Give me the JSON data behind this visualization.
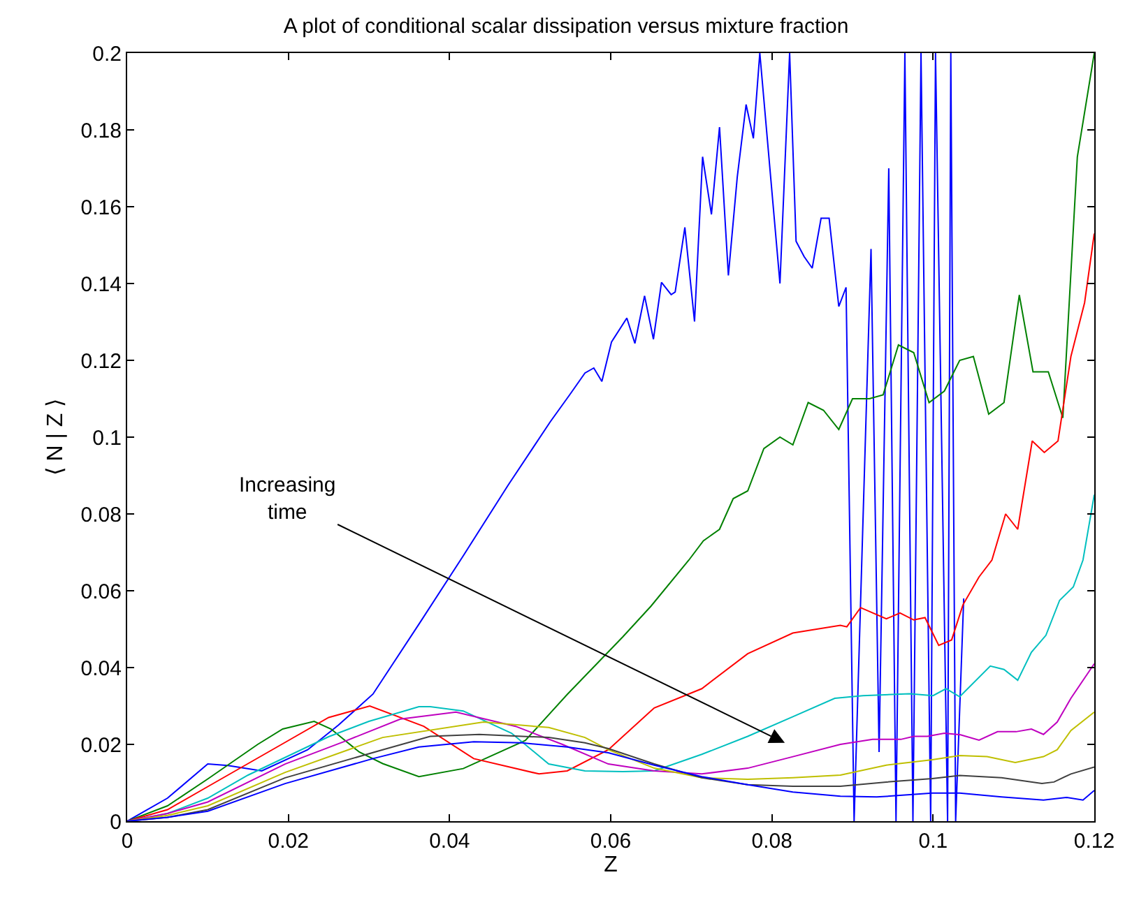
{
  "chart_data": {
    "type": "line",
    "title": "A plot of conditional scalar dissipation versus mixture fraction",
    "xlabel": "Z",
    "ylabel": "⟨ N | Z ⟩",
    "xlim": [
      0,
      0.12
    ],
    "xticks": [
      0,
      0.02,
      0.04,
      0.06,
      0.08,
      0.1,
      0.12
    ],
    "ylim": [
      0,
      0.2
    ],
    "yticks": [
      0,
      0.02,
      0.04,
      0.06,
      0.08,
      0.1,
      0.12,
      0.14,
      0.16,
      0.18,
      0.2
    ],
    "annotations": [
      "Increasing\ntime"
    ],
    "series": [
      {
        "color": "#0000ff",
        "x": [
          0,
          0.005,
          0.01,
          0.0125,
          0.0167,
          0.0224,
          0.0262,
          0.0305,
          0.0362,
          0.0417,
          0.0473,
          0.0525,
          0.0549,
          0.0568,
          0.0579,
          0.0589,
          0.0601,
          0.062,
          0.063,
          0.0642,
          0.0653,
          0.0663,
          0.0675,
          0.068,
          0.0692,
          0.0704,
          0.0714,
          0.0725,
          0.0735,
          0.0746,
          0.0757,
          0.0768,
          0.0777,
          0.0785,
          0.081,
          0.0822,
          0.083,
          0.084,
          0.085,
          0.0861,
          0.0871,
          0.0883,
          0.0892,
          0.0902,
          0.0923,
          0.0933,
          0.0945,
          0.0954,
          0.0965,
          0.0975,
          0.0985,
          0.0997,
          0.1003,
          0.1018,
          0.1022,
          0.1028,
          0.1038
        ],
        "values": [
          0,
          0.006,
          0.0149,
          0.0145,
          0.0131,
          0.0186,
          0.025,
          0.0331,
          0.0513,
          0.0691,
          0.0876,
          0.104,
          0.111,
          0.1167,
          0.118,
          0.1145,
          0.1248,
          0.131,
          0.1244,
          0.1368,
          0.1255,
          0.1403,
          0.1371,
          0.1378,
          0.1546,
          0.1301,
          0.173,
          0.158,
          0.1807,
          0.1421,
          0.1677,
          0.1866,
          0.1778,
          0.2,
          0.14,
          0.2,
          0.151,
          0.147,
          0.144,
          0.157,
          0.157,
          0.134,
          0.139,
          0,
          0.149,
          0.018,
          0.17,
          0,
          0.2,
          0,
          0.2,
          0,
          0.2,
          0,
          0.2,
          0,
          0.058
        ]
      },
      {
        "color": "#008000",
        "x": [
          0,
          0.005,
          0.01,
          0.0162,
          0.0193,
          0.0232,
          0.0253,
          0.0288,
          0.0317,
          0.0362,
          0.0417,
          0.0494,
          0.0546,
          0.0615,
          0.065,
          0.0697,
          0.0715,
          0.0735,
          0.0752,
          0.077,
          0.079,
          0.081,
          0.0826,
          0.0845,
          0.0864,
          0.0883,
          0.09,
          0.0921,
          0.0938,
          0.0957,
          0.0976,
          0.0995,
          0.1014,
          0.1033,
          0.105,
          0.1069,
          0.1088,
          0.1107,
          0.1124,
          0.1143,
          0.1161,
          0.1179,
          0.12
        ],
        "values": [
          0,
          0.004,
          0.011,
          0.02,
          0.024,
          0.026,
          0.024,
          0.018,
          0.015,
          0.0116,
          0.0137,
          0.021,
          0.033,
          0.048,
          0.056,
          0.068,
          0.073,
          0.076,
          0.084,
          0.086,
          0.097,
          0.1,
          0.098,
          0.109,
          0.107,
          0.102,
          0.11,
          0.11,
          0.111,
          0.124,
          0.122,
          0.109,
          0.112,
          0.12,
          0.121,
          0.106,
          0.109,
          0.137,
          0.117,
          0.117,
          0.105,
          0.173,
          0.2
        ]
      },
      {
        "color": "#ff0000",
        "x": [
          0,
          0.005,
          0.01,
          0.015,
          0.02,
          0.025,
          0.0301,
          0.0368,
          0.043,
          0.0511,
          0.0546,
          0.0597,
          0.0654,
          0.0713,
          0.077,
          0.0826,
          0.0885,
          0.0893,
          0.091,
          0.0942,
          0.0959,
          0.0976,
          0.099,
          0.1007,
          0.1023,
          0.1037,
          0.1057,
          0.1073,
          0.109,
          0.1105,
          0.1123,
          0.1138,
          0.1155,
          0.1171,
          0.1188,
          0.12
        ],
        "values": [
          0,
          0.003,
          0.009,
          0.015,
          0.021,
          0.027,
          0.03,
          0.0247,
          0.0163,
          0.0123,
          0.0131,
          0.0186,
          0.0295,
          0.0345,
          0.0436,
          0.049,
          0.051,
          0.0506,
          0.0556,
          0.0527,
          0.0542,
          0.0524,
          0.053,
          0.0458,
          0.0472,
          0.0563,
          0.0636,
          0.068,
          0.08,
          0.076,
          0.099,
          0.096,
          0.099,
          0.121,
          0.135,
          0.153
        ]
      },
      {
        "color": "#00bfbf",
        "x": [
          0,
          0.005,
          0.01,
          0.015,
          0.02,
          0.025,
          0.03,
          0.0362,
          0.0376,
          0.0417,
          0.0477,
          0.0523,
          0.0568,
          0.0615,
          0.0654,
          0.0713,
          0.077,
          0.0826,
          0.0878,
          0.0913,
          0.0971,
          0.1,
          0.1016,
          0.1033,
          0.1071,
          0.1088,
          0.1105,
          0.1122,
          0.114,
          0.1157,
          0.1174,
          0.1186,
          0.12
        ],
        "values": [
          0,
          0.002,
          0.006,
          0.012,
          0.017,
          0.022,
          0.026,
          0.0298,
          0.0298,
          0.0287,
          0.0229,
          0.0149,
          0.0131,
          0.0129,
          0.0131,
          0.0174,
          0.0221,
          0.0272,
          0.032,
          0.0327,
          0.0332,
          0.0327,
          0.0345,
          0.0324,
          0.0404,
          0.0395,
          0.0367,
          0.044,
          0.0484,
          0.0575,
          0.061,
          0.068,
          0.085
        ]
      },
      {
        "color": "#bf00bf",
        "x": [
          0,
          0.005,
          0.01,
          0.0196,
          0.027,
          0.0339,
          0.0408,
          0.0482,
          0.054,
          0.0597,
          0.0654,
          0.0713,
          0.077,
          0.0826,
          0.0885,
          0.0925,
          0.096,
          0.0976,
          0.0993,
          0.1014,
          0.1034,
          0.1057,
          0.108,
          0.1103,
          0.1122,
          0.1137,
          0.1154,
          0.1171,
          0.12
        ],
        "values": [
          0,
          0.002,
          0.005,
          0.0149,
          0.0208,
          0.0266,
          0.0284,
          0.0247,
          0.02,
          0.0149,
          0.0131,
          0.0123,
          0.0138,
          0.0168,
          0.02,
          0.0213,
          0.0213,
          0.0221,
          0.0221,
          0.0229,
          0.0225,
          0.0211,
          0.0233,
          0.0233,
          0.024,
          0.0226,
          0.0258,
          0.032,
          0.041
        ]
      },
      {
        "color": "#bfbf00",
        "x": [
          0,
          0.005,
          0.01,
          0.0196,
          0.0317,
          0.0442,
          0.0523,
          0.0568,
          0.0597,
          0.0654,
          0.0713,
          0.077,
          0.0826,
          0.0885,
          0.0942,
          0.0999,
          0.1033,
          0.1067,
          0.1102,
          0.1137,
          0.1154,
          0.1171,
          0.12
        ],
        "values": [
          0,
          0.0015,
          0.004,
          0.0127,
          0.0218,
          0.0258,
          0.0244,
          0.0218,
          0.0186,
          0.0138,
          0.0113,
          0.0109,
          0.0113,
          0.012,
          0.0146,
          0.016,
          0.0171,
          0.0168,
          0.0153,
          0.0168,
          0.0186,
          0.0236,
          0.0284
        ]
      },
      {
        "color": "#404040",
        "x": [
          0,
          0.005,
          0.01,
          0.0196,
          0.0317,
          0.0376,
          0.0437,
          0.0523,
          0.0568,
          0.0597,
          0.0654,
          0.0713,
          0.077,
          0.0826,
          0.0885,
          0.0942,
          0.0999,
          0.1033,
          0.1085,
          0.1135,
          0.115,
          0.1171,
          0.12
        ],
        "values": [
          0,
          0.001,
          0.003,
          0.0113,
          0.0186,
          0.0221,
          0.0226,
          0.0218,
          0.0204,
          0.0189,
          0.0149,
          0.0113,
          0.0095,
          0.0091,
          0.0091,
          0.0102,
          0.0111,
          0.0119,
          0.0113,
          0.0098,
          0.0102,
          0.0123,
          0.0141
        ]
      },
      {
        "color": "#0000ff",
        "x": [
          0,
          0.005,
          0.01,
          0.0196,
          0.0305,
          0.0362,
          0.043,
          0.049,
          0.0546,
          0.0597,
          0.0654,
          0.0713,
          0.077,
          0.0826,
          0.0885,
          0.093,
          0.0999,
          0.1033,
          0.1085,
          0.1137,
          0.1166,
          0.1186,
          0.12
        ],
        "values": [
          0,
          0.001,
          0.0026,
          0.0098,
          0.0163,
          0.0193,
          0.0207,
          0.0204,
          0.0193,
          0.0178,
          0.0146,
          0.0116,
          0.0095,
          0.0076,
          0.0065,
          0.0063,
          0.0073,
          0.0073,
          0.0063,
          0.0055,
          0.0062,
          0.0055,
          0.008
        ]
      }
    ]
  }
}
